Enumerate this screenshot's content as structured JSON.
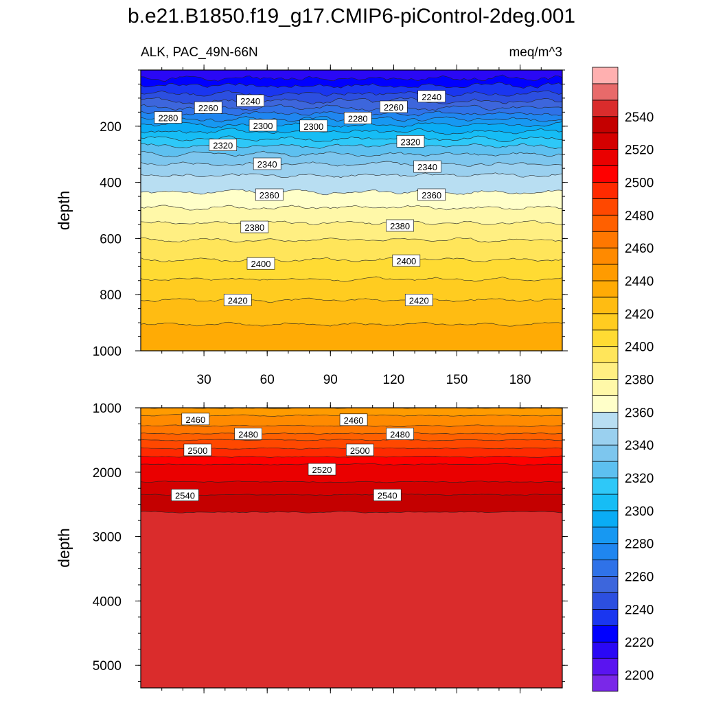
{
  "title": "b.e21.B1850.f19_g17.CMIP6-piControl-2deg.001",
  "subtitle_left": "ALK, PAC_49N-66N",
  "subtitle_right": "meq/m^3",
  "chart_data": [
    {
      "type": "heatmap",
      "panel": "upper",
      "ylabel": "depth",
      "xlim": [
        0,
        200
      ],
      "ylim": [
        1000,
        0
      ],
      "x_ticks": [
        30,
        60,
        90,
        120,
        150,
        180
      ],
      "y_ticks": [
        200,
        400,
        600,
        800,
        1000
      ],
      "contour_interval": 10,
      "contour_depths": [
        {
          "level": 2220,
          "depth": 30
        },
        {
          "level": 2230,
          "depth": 55
        },
        {
          "level": 2240,
          "depth": 85
        },
        {
          "level": 2250,
          "depth": 110
        },
        {
          "level": 2260,
          "depth": 135
        },
        {
          "level": 2270,
          "depth": 155
        },
        {
          "level": 2280,
          "depth": 175
        },
        {
          "level": 2290,
          "depth": 195
        },
        {
          "level": 2300,
          "depth": 220
        },
        {
          "level": 2310,
          "depth": 245
        },
        {
          "level": 2320,
          "depth": 270
        },
        {
          "level": 2330,
          "depth": 300
        },
        {
          "level": 2340,
          "depth": 335
        },
        {
          "level": 2350,
          "depth": 375
        },
        {
          "level": 2360,
          "depth": 435
        },
        {
          "level": 2370,
          "depth": 490
        },
        {
          "level": 2380,
          "depth": 545
        },
        {
          "level": 2390,
          "depth": 605
        },
        {
          "level": 2400,
          "depth": 675
        },
        {
          "level": 2410,
          "depth": 745
        },
        {
          "level": 2420,
          "depth": 820
        },
        {
          "level": 2430,
          "depth": 905
        }
      ],
      "labels": [
        {
          "text": "2240",
          "x": 52,
          "y": 110
        },
        {
          "text": "2240",
          "x": 138,
          "y": 95
        },
        {
          "text": "2260",
          "x": 32,
          "y": 135
        },
        {
          "text": "2260",
          "x": 120,
          "y": 132
        },
        {
          "text": "2280",
          "x": 13,
          "y": 170
        },
        {
          "text": "2280",
          "x": 103,
          "y": 172
        },
        {
          "text": "2300",
          "x": 58,
          "y": 198
        },
        {
          "text": "2300",
          "x": 82,
          "y": 200
        },
        {
          "text": "2320",
          "x": 39,
          "y": 268
        },
        {
          "text": "2320",
          "x": 128,
          "y": 255
        },
        {
          "text": "2340",
          "x": 60,
          "y": 335
        },
        {
          "text": "2340",
          "x": 136,
          "y": 345
        },
        {
          "text": "2360",
          "x": 61,
          "y": 445
        },
        {
          "text": "2360",
          "x": 138,
          "y": 445
        },
        {
          "text": "2380",
          "x": 54,
          "y": 560
        },
        {
          "text": "2380",
          "x": 123,
          "y": 555
        },
        {
          "text": "2400",
          "x": 57,
          "y": 690
        },
        {
          "text": "2400",
          "x": 126,
          "y": 680
        },
        {
          "text": "2420",
          "x": 46,
          "y": 820
        },
        {
          "text": "2420",
          "x": 132,
          "y": 820
        }
      ]
    },
    {
      "type": "heatmap",
      "panel": "lower",
      "ylabel": "depth",
      "xlim": [
        0,
        200
      ],
      "ylim": [
        5350,
        1000
      ],
      "y_ticks": [
        1000,
        2000,
        3000,
        4000,
        5000
      ],
      "contour_interval": 10,
      "contour_depths": [
        {
          "level": 2440,
          "depth": 1000
        },
        {
          "level": 2450,
          "depth": 1120
        },
        {
          "level": 2460,
          "depth": 1280
        },
        {
          "level": 2470,
          "depth": 1400
        },
        {
          "level": 2480,
          "depth": 1500
        },
        {
          "level": 2490,
          "depth": 1630
        },
        {
          "level": 2500,
          "depth": 1760
        },
        {
          "level": 2510,
          "depth": 1880
        },
        {
          "level": 2520,
          "depth": 2150
        },
        {
          "level": 2530,
          "depth": 2350
        },
        {
          "level": 2540,
          "depth": 2620
        }
      ],
      "labels": [
        {
          "text": "2460",
          "x": 26,
          "y": 1180
        },
        {
          "text": "2460",
          "x": 101,
          "y": 1190
        },
        {
          "text": "2480",
          "x": 51,
          "y": 1410
        },
        {
          "text": "2480",
          "x": 123,
          "y": 1410
        },
        {
          "text": "2500",
          "x": 27,
          "y": 1660
        },
        {
          "text": "2500",
          "x": 104,
          "y": 1660
        },
        {
          "text": "2520",
          "x": 86,
          "y": 1960
        },
        {
          "text": "2540",
          "x": 21,
          "y": 2360
        },
        {
          "text": "2540",
          "x": 117,
          "y": 2360
        }
      ]
    }
  ],
  "colorbar": {
    "min": 2190,
    "max": 2560,
    "step": 10,
    "tick_labels": [
      "2200",
      "2220",
      "2240",
      "2260",
      "2280",
      "2300",
      "2320",
      "2340",
      "2360",
      "2380",
      "2400",
      "2420",
      "2440",
      "2460",
      "2480",
      "2500",
      "2520",
      "2540"
    ],
    "colors": [
      "#7a28e8",
      "#5a14f0",
      "#2a08f5",
      "#0000ff",
      "#1a36f0",
      "#2c4fe0",
      "#3d66dc",
      "#2f72e8",
      "#1f86f0",
      "#1798f2",
      "#0aacf5",
      "#16bdf5",
      "#2ec8f8",
      "#5dc0f0",
      "#7dc6ee",
      "#9ad0ef",
      "#b8def2",
      "#ffffc9",
      "#fff8a8",
      "#ffef82",
      "#ffe55a",
      "#ffdb33",
      "#ffcc20",
      "#ffbc12",
      "#ffab05",
      "#ff9b00",
      "#ff8a00",
      "#ff7700",
      "#ff6000",
      "#ff4800",
      "#ff2a00",
      "#ff0000",
      "#ea0000",
      "#d40000",
      "#c40000",
      "#da2c2c",
      "#e86a6a",
      "#ffb0b0"
    ]
  }
}
